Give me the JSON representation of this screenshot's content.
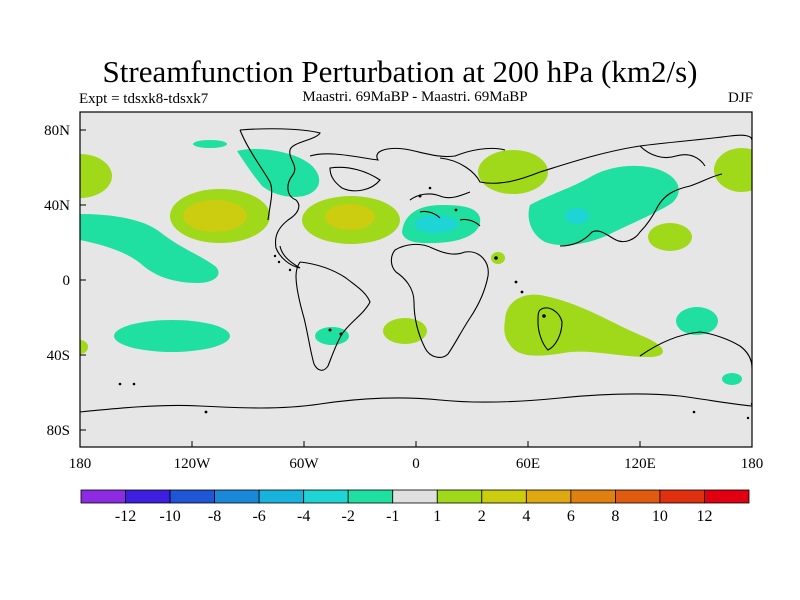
{
  "title": "Streamfunction Perturbation at 200 hPa (km2/s)",
  "left_subtitle": "Expt = tdsxk8-tdsxk7",
  "center_subtitle": "Maastri.  69MaBP - Maastri.  69MaBP",
  "right_subtitle": "DJF",
  "lat_ticks": [
    "80N",
    "40N",
    "0",
    "40S",
    "80S"
  ],
  "lon_ticks": [
    "180",
    "120W",
    "60W",
    "0",
    "60E",
    "120E",
    "180"
  ],
  "colorbar": {
    "labels": [
      "-12",
      "-10",
      "-8",
      "-6",
      "-4",
      "-2",
      "-1",
      "1",
      "2",
      "4",
      "6",
      "8",
      "10",
      "12"
    ],
    "colors": [
      "#8c2be2",
      "#3e1fe0",
      "#1f56d6",
      "#1a88d8",
      "#18b3dc",
      "#1fd4d4",
      "#1fe0a0",
      "#e0e0e0",
      "#a0d81a",
      "#cccc10",
      "#e0a810",
      "#e08010",
      "#e05a10",
      "#e03010",
      "#e00010"
    ]
  },
  "map_colors": {
    "background": "#e6e6e6",
    "neg_1": "#1fe0a0",
    "neg_2": "#1fd4d4",
    "pos_1": "#a0d81a",
    "pos_2": "#cccc10"
  }
}
